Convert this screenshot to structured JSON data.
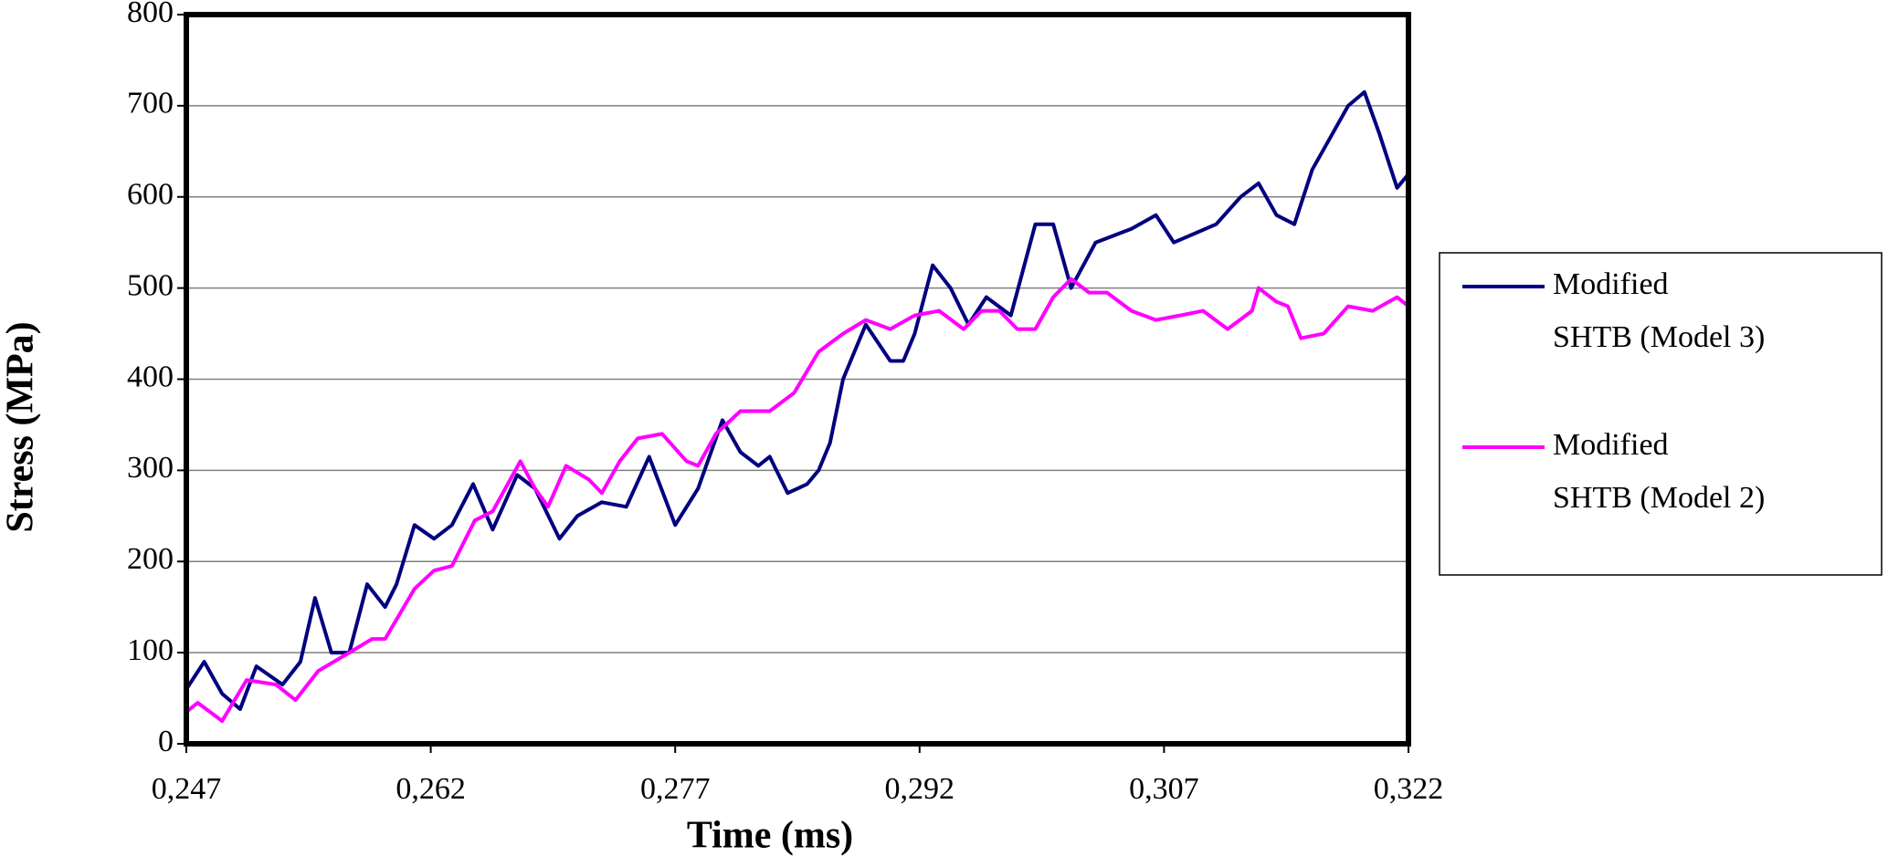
{
  "chart_data": {
    "type": "line",
    "x_label": "Time (ms)",
    "y_label": "Stress (MPa)",
    "xlim": [
      0.247,
      0.322
    ],
    "xticks": [
      {
        "value": 0.247,
        "label": "0,247"
      },
      {
        "value": 0.262,
        "label": "0,262"
      },
      {
        "value": 0.277,
        "label": "0,277"
      },
      {
        "value": 0.292,
        "label": "0,292"
      },
      {
        "value": 0.307,
        "label": "0,307"
      },
      {
        "value": 0.322,
        "label": "0,322"
      }
    ],
    "ylim": [
      0,
      800
    ],
    "yticks": [
      0,
      100,
      200,
      300,
      400,
      500,
      600,
      700,
      800
    ],
    "grid": true,
    "legend": "right",
    "series": [
      {
        "name": "Modified SHTB (Model 3)",
        "color": "#000080",
        "x": [
          0.247,
          0.2481,
          0.2492,
          0.2503,
          0.2513,
          0.2529,
          0.254,
          0.2549,
          0.2559,
          0.257,
          0.2581,
          0.2592,
          0.2599,
          0.261,
          0.2622,
          0.2633,
          0.2646,
          0.2658,
          0.2673,
          0.2684,
          0.2699,
          0.271,
          0.2725,
          0.274,
          0.2754,
          0.277,
          0.2784,
          0.2799,
          0.281,
          0.2821,
          0.2828,
          0.2839,
          0.2851,
          0.2858,
          0.2865,
          0.2873,
          0.288,
          0.2887,
          0.2902,
          0.291,
          0.2917,
          0.2928,
          0.2939,
          0.295,
          0.2961,
          0.2976,
          0.2991,
          0.3002,
          0.3013,
          0.3028,
          0.305,
          0.3065,
          0.3076,
          0.3102,
          0.3117,
          0.3128,
          0.3139,
          0.315,
          0.3161,
          0.3172,
          0.3183,
          0.3193,
          0.3202,
          0.3213,
          0.322
        ],
        "values": [
          60,
          90,
          55,
          38,
          85,
          65,
          90,
          160,
          100,
          100,
          175,
          150,
          175,
          240,
          225,
          240,
          285,
          235,
          295,
          280,
          225,
          250,
          265,
          260,
          315,
          240,
          280,
          355,
          320,
          305,
          315,
          275,
          285,
          300,
          330,
          400,
          430,
          460,
          420,
          420,
          450,
          525,
          500,
          460,
          490,
          470,
          570,
          570,
          500,
          550,
          565,
          580,
          550,
          570,
          600,
          615,
          580,
          570,
          630,
          665,
          700,
          715,
          670,
          610,
          625
        ]
      },
      {
        "name": "Modified SHTB (Model 2)",
        "color": "#ff00ff",
        "x": [
          0.247,
          0.2477,
          0.2492,
          0.2507,
          0.2525,
          0.2537,
          0.2551,
          0.257,
          0.2584,
          0.2592,
          0.261,
          0.2622,
          0.2633,
          0.2647,
          0.2658,
          0.2675,
          0.2684,
          0.2692,
          0.2703,
          0.2717,
          0.2725,
          0.2736,
          0.2747,
          0.2762,
          0.2777,
          0.2784,
          0.2795,
          0.281,
          0.2828,
          0.2843,
          0.2858,
          0.2873,
          0.2887,
          0.2902,
          0.2917,
          0.2932,
          0.2947,
          0.2958,
          0.2969,
          0.298,
          0.2991,
          0.3002,
          0.3013,
          0.3024,
          0.3035,
          0.305,
          0.3065,
          0.308,
          0.3094,
          0.3109,
          0.3124,
          0.3128,
          0.3139,
          0.3146,
          0.3154,
          0.3168,
          0.3183,
          0.3198,
          0.3213,
          0.322
        ],
        "values": [
          35,
          45,
          25,
          70,
          65,
          48,
          80,
          100,
          115,
          115,
          170,
          190,
          195,
          245,
          255,
          310,
          280,
          260,
          305,
          290,
          275,
          310,
          335,
          340,
          310,
          305,
          340,
          365,
          365,
          385,
          430,
          450,
          465,
          455,
          470,
          475,
          455,
          475,
          475,
          455,
          455,
          490,
          510,
          495,
          495,
          475,
          465,
          470,
          475,
          455,
          475,
          500,
          485,
          480,
          445,
          450,
          480,
          475,
          490,
          480
        ]
      }
    ]
  }
}
